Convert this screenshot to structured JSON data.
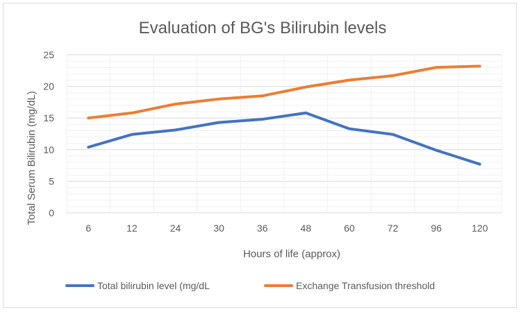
{
  "chart_data": {
    "type": "line",
    "title": "Evaluation of BG's Bilirubin levels",
    "xlabel": "Hours of life (approx)",
    "ylabel": "Total Serum Bilirubin (mg/dL)",
    "categories": [
      "6",
      "12",
      "24",
      "30",
      "36",
      "48",
      "60",
      "72",
      "96",
      "120"
    ],
    "ylim": [
      0,
      25
    ],
    "yticks": [
      "0",
      "5",
      "10",
      "15",
      "20",
      "25"
    ],
    "grid": true,
    "legend_position": "bottom",
    "series": [
      {
        "name": "Total bilirubin level (mg/dL",
        "color": "#4472c4",
        "values": [
          10.4,
          12.4,
          13.1,
          14.3,
          14.8,
          15.8,
          13.3,
          12.4,
          9.9,
          7.7
        ]
      },
      {
        "name": "Exchange Transfusion threshold",
        "color": "#ed7d31",
        "values": [
          15.0,
          15.8,
          17.2,
          18.0,
          18.5,
          19.9,
          21.0,
          21.7,
          23.0,
          23.2
        ]
      }
    ]
  }
}
